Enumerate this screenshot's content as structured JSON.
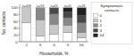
{
  "chart_data": {
    "type": "bar",
    "stacked": true,
    "legend": "right",
    "xlabel": "Households, %",
    "ylabel": "No. contacts",
    "legend_title": "Symptomatic\ncontacts",
    "categories": [
      "2",
      "3",
      "4",
      "5",
      "≥6"
    ],
    "annotations": [
      "n=408",
      "n=93",
      "n=63",
      "n=41",
      "n=18"
    ],
    "series": [
      {
        "name": "0",
        "color": "#ffffff",
        "values": [
          57,
          17,
          22,
          27,
          11
        ]
      },
      {
        "name": "1",
        "color": "#c8c8c8",
        "values": [
          43,
          48,
          30,
          22,
          17
        ]
      },
      {
        "name": "2",
        "color": "#888888",
        "values": [
          0,
          35,
          30,
          22,
          28
        ]
      },
      {
        "name": "3",
        "color": "#484848",
        "values": [
          0,
          0,
          18,
          17,
          22
        ]
      },
      {
        "name": "≥4",
        "color": "#202020",
        "values": [
          0,
          0,
          0,
          12,
          22
        ]
      }
    ],
    "ylim": [
      0,
      110
    ],
    "yticks": [
      0,
      20,
      40,
      60,
      80,
      100
    ]
  }
}
